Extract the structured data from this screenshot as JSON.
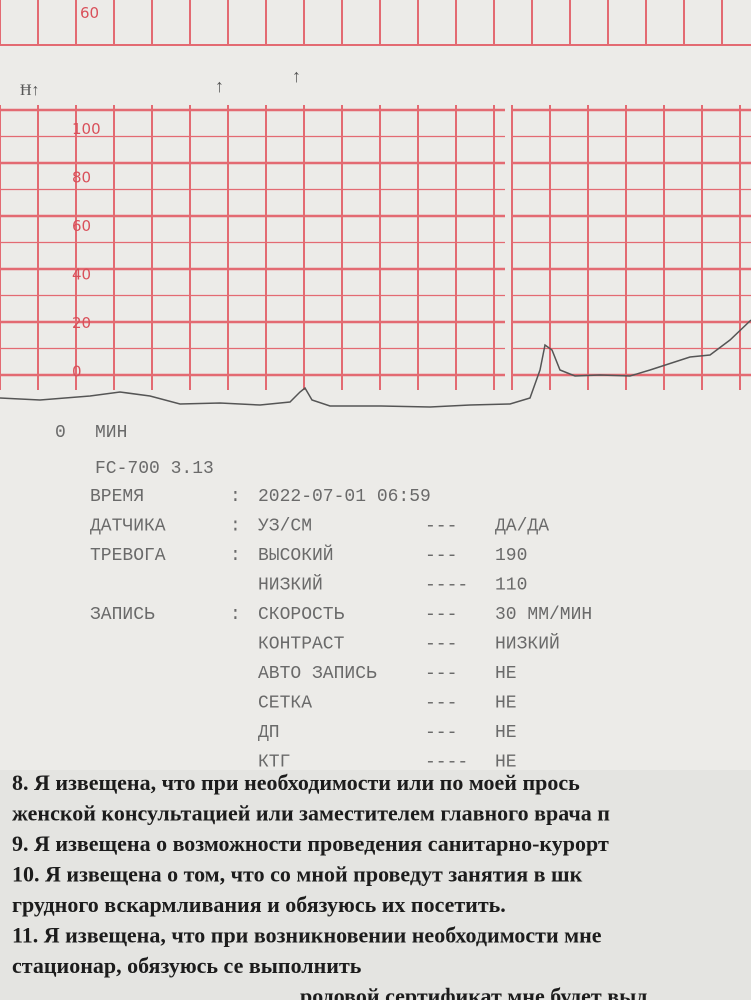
{
  "tape": {
    "top_scale": "60",
    "scale_labels": [
      "100",
      "80",
      "60",
      "40",
      "20",
      "0"
    ],
    "time_mark": "0",
    "time_unit": "МИН"
  },
  "printout": {
    "device": "FC-700 3.13",
    "rows": [
      {
        "label": "ВРЕМЯ",
        "sep": ":",
        "key": "2022-07-01 06:59"
      },
      {
        "label": "ДАТЧИКА",
        "sep": ":",
        "key": "УЗ/СМ",
        "dash": "---",
        "value": "ДА/ДА"
      },
      {
        "label": "ТРЕВОГА",
        "sep": ":",
        "key": "ВЫСОКИЙ",
        "dash": "---",
        "value": "190"
      },
      {
        "key": "НИЗКИЙ",
        "dash": "----",
        "value": "110"
      },
      {
        "label": "ЗАПИСЬ",
        "sep": ":",
        "key": "СКОРОСТЬ",
        "dash": "---",
        "value": "30 ММ/МИН"
      },
      {
        "key": "КОНТРАСТ",
        "dash": "---",
        "value": "НИЗКИЙ"
      },
      {
        "key": "АВТО ЗАПИСЬ",
        "dash": "---",
        "value": "НЕ"
      },
      {
        "key": "СЕТКА",
        "dash": "---",
        "value": "НЕ"
      },
      {
        "key": "ДП",
        "dash": "---",
        "value": "НЕ"
      },
      {
        "key": "КТГ",
        "dash": "----",
        "value": "НЕ"
      }
    ]
  },
  "document": {
    "lines": [
      "8. Я извещена, что при необходимости или по моей прось",
      "женской консультацией или заместителем главного врача п",
      "9. Я извещена о возможности проведения санитарно-курорт",
      "10. Я извещена о том, что со мной проведут занятия в шк",
      "грудного вскармливания и обязуюсь их посетить.",
      "11. Я извещена, что при возникновении необходимости мне",
      "стационар, обязуюсь се выполнить",
      "родовой сертификат мне будет выд"
    ]
  }
}
